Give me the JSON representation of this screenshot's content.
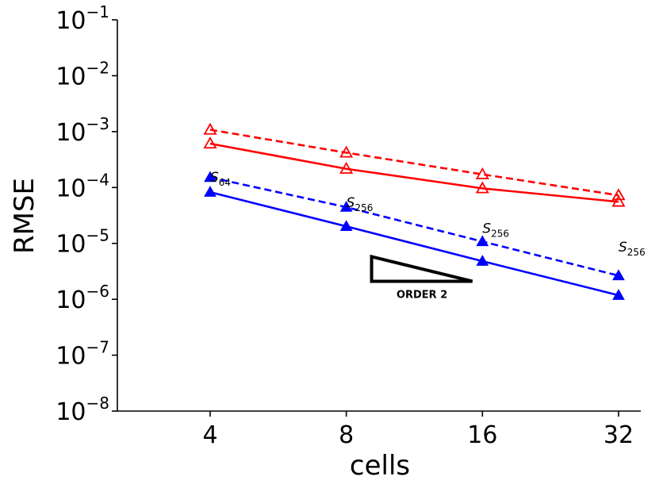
{
  "chart_data": {
    "type": "line",
    "xscale": "log2",
    "yscale": "log10",
    "xlabel": "cells",
    "ylabel": "RMSE",
    "x": [
      4,
      8,
      16,
      32
    ],
    "x_tick_labels": [
      "4",
      "8",
      "16",
      "32"
    ],
    "ylim": [
      1e-08,
      0.1
    ],
    "y_ticks": [
      {
        "base": "10",
        "exp": "−8",
        "value": 1e-08
      },
      {
        "base": "10",
        "exp": "−7",
        "value": 1e-07
      },
      {
        "base": "10",
        "exp": "−6",
        "value": 1e-06
      },
      {
        "base": "10",
        "exp": "−5",
        "value": 1e-05
      },
      {
        "base": "10",
        "exp": "−4",
        "value": 0.0001
      },
      {
        "base": "10",
        "exp": "−3",
        "value": 0.001
      },
      {
        "base": "10",
        "exp": "−2",
        "value": 0.01
      },
      {
        "base": "10",
        "exp": "−1",
        "value": 0.1
      }
    ],
    "series": [
      {
        "name": "red-dashed-open",
        "color": "#ff0000",
        "dash": true,
        "marker": "open-triangle",
        "values": [
          0.00108,
          0.00042,
          0.000172,
          7.25e-05
        ]
      },
      {
        "name": "red-solid-open",
        "color": "#ff0000",
        "dash": false,
        "marker": "open-triangle",
        "values": [
          0.00061,
          0.000216,
          9.65e-05,
          5.55e-05
        ]
      },
      {
        "name": "blue-dashed-filled",
        "color": "#0000ff",
        "dash": true,
        "marker": "filled-triangle",
        "values": [
          0.000152,
          4.45e-05,
          1.08e-05,
          2.65e-06
        ]
      },
      {
        "name": "blue-solid-filled",
        "color": "#0000ff",
        "dash": false,
        "marker": "filled-triangle",
        "values": [
          8.25e-05,
          2.02e-05,
          4.8e-06,
          1.18e-06
        ]
      }
    ],
    "annotations": [
      {
        "base": "S",
        "sub": "64",
        "x": 4,
        "y": 0.000127
      },
      {
        "base": "S",
        "sub": "256",
        "x": 8,
        "y": 4.45e-05
      },
      {
        "base": "S",
        "sub": "256",
        "x": 16,
        "y": 1.55e-05
      },
      {
        "base": "S",
        "sub": "256",
        "x": 32,
        "y": 7.2e-06
      }
    ],
    "slope_triangle": {
      "label": "ORDER 2",
      "x_left": 9.1,
      "x_right": 15.2,
      "y_bottom": 2.1e-06,
      "y_top": 5.8e-06
    }
  }
}
